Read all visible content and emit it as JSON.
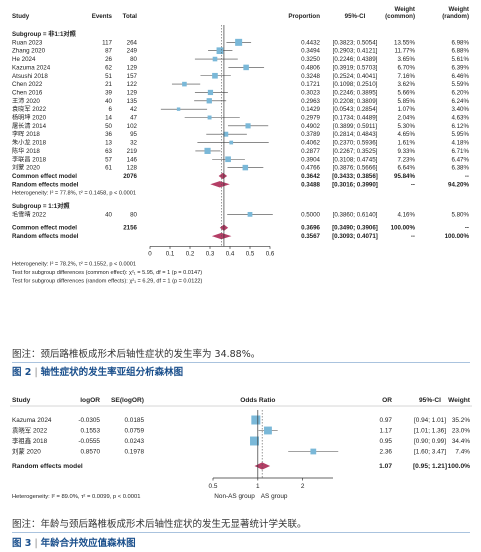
{
  "fig2": {
    "caption": "图注：颈后路椎板成形术后轴性症状的发生率为 34.88%。",
    "fig_label": "图 2",
    "fig_title": "轴性症状的发生率亚组分析森林图"
  },
  "fig3": {
    "caption": "图注：年龄与颈后路椎板成形术后轴性症状的发生无显著统计学关联。",
    "fig_label": "图 3",
    "fig_title": "年龄合并效应值森林图"
  },
  "chart_data": [
    {
      "type": "forest",
      "header": {
        "study": "Study",
        "events": "Events",
        "total": "Total",
        "proportion": "Proportion",
        "ci": "95%-CI",
        "wc_line1": "Weight",
        "wc_line2": "(common)",
        "wr_line1": "Weight",
        "wr_line2": "(random)"
      },
      "subgroups": [
        {
          "label": "Subgroup = 非1:1对照",
          "studies": [
            {
              "study": "Ruan 2023",
              "events": "117",
              "total": "264",
              "proportion": 0.4432,
              "ci": "[0.3823; 0.5054]",
              "lo": 0.3823,
              "hi": 0.5054,
              "wc": "13.55%",
              "wr": "6.98%"
            },
            {
              "study": "Zhang 2020",
              "events": "87",
              "total": "249",
              "proportion": 0.3494,
              "ci": "[0.2903; 0.4121]",
              "lo": 0.2903,
              "hi": 0.4121,
              "wc": "11.77%",
              "wr": "6.88%"
            },
            {
              "study": "He 2024",
              "events": "26",
              "total": "80",
              "proportion": 0.325,
              "ci": "[0.2246; 0.4389]",
              "lo": 0.2246,
              "hi": 0.4389,
              "wc": "3.65%",
              "wr": "5.61%"
            },
            {
              "study": "Kazuma 2024",
              "events": "62",
              "total": "129",
              "proportion": 0.4806,
              "ci": "[0.3919; 0.5703]",
              "lo": 0.3919,
              "hi": 0.5703,
              "wc": "6.70%",
              "wr": "6.39%"
            },
            {
              "study": "Atsushi 2018",
              "events": "51",
              "total": "157",
              "proportion": 0.3248,
              "ci": "[0.2524; 0.4041]",
              "lo": 0.2524,
              "hi": 0.4041,
              "wc": "7.16%",
              "wr": "6.46%"
            },
            {
              "study": "Chen 2022",
              "events": "21",
              "total": "122",
              "proportion": 0.1721,
              "ci": "[0.1098; 0.2510]",
              "lo": 0.1098,
              "hi": 0.251,
              "wc": "3.62%",
              "wr": "5.59%"
            },
            {
              "study": "Chen 2016",
              "events": "39",
              "total": "129",
              "proportion": 0.3023,
              "ci": "[0.2246; 0.3895]",
              "lo": 0.2246,
              "hi": 0.3895,
              "wc": "5.66%",
              "wr": "6.20%"
            },
            {
              "study": "王沛 2020",
              "events": "40",
              "total": "135",
              "proportion": 0.2963,
              "ci": "[0.2208; 0.3809]",
              "lo": 0.2208,
              "hi": 0.3809,
              "wc": "5.85%",
              "wr": "6.24%"
            },
            {
              "study": "袁晓军 2022",
              "events": "6",
              "total": "42",
              "proportion": 0.1429,
              "ci": "[0.0543; 0.2854]",
              "lo": 0.0543,
              "hi": 0.2854,
              "wc": "1.07%",
              "wr": "3.40%"
            },
            {
              "study": "杨明坤 2020",
              "events": "14",
              "total": "47",
              "proportion": 0.2979,
              "ci": "[0.1734; 0.4489]",
              "lo": 0.1734,
              "hi": 0.4489,
              "wc": "2.04%",
              "wr": "4.63%"
            },
            {
              "study": "屠长清 2014",
              "events": "50",
              "total": "102",
              "proportion": 0.4902,
              "ci": "[0.3899; 0.5911]",
              "lo": 0.3899,
              "hi": 0.5911,
              "wc": "5.30%",
              "wr": "6.12%"
            },
            {
              "study": "李晖 2018",
              "events": "36",
              "total": "95",
              "proportion": 0.3789,
              "ci": "[0.2814; 0.4843]",
              "lo": 0.2814,
              "hi": 0.4843,
              "wc": "4.65%",
              "wr": "5.95%"
            },
            {
              "study": "朱小龙 2018",
              "events": "13",
              "total": "32",
              "proportion": 0.4062,
              "ci": "[0.2370; 0.5936]",
              "lo": 0.237,
              "hi": 0.5936,
              "wc": "1.61%",
              "wr": "4.18%"
            },
            {
              "study": "陈华 2018",
              "events": "63",
              "total": "219",
              "proportion": 0.2877,
              "ci": "[0.2267; 0.3525]",
              "lo": 0.2267,
              "hi": 0.3525,
              "wc": "9.33%",
              "wr": "6.71%"
            },
            {
              "study": "李联昌 2018",
              "events": "57",
              "total": "146",
              "proportion": 0.3904,
              "ci": "[0.3108; 0.4745]",
              "lo": 0.3108,
              "hi": 0.4745,
              "wc": "7.23%",
              "wr": "6.47%"
            },
            {
              "study": "刘蒙 2020",
              "events": "61",
              "total": "128",
              "proportion": 0.4766,
              "ci": "[0.3876; 0.5666]",
              "lo": 0.3876,
              "hi": 0.5666,
              "wc": "6.64%",
              "wr": "6.38%"
            }
          ],
          "common": {
            "label": "Common effect model",
            "total": "2076",
            "est": 0.3642,
            "ci": "[0.3433; 0.3856]",
            "lo": 0.3433,
            "hi": 0.3856,
            "wc": "95.84%",
            "wr": "--"
          },
          "random": {
            "label": "Random effects model",
            "est": 0.3488,
            "ci": "[0.3016; 0.3990]",
            "lo": 0.3016,
            "hi": 0.399,
            "wc": "--",
            "wr": "94.20%"
          },
          "heterogeneity": "Heterogeneity: I² = 77.8%, τ² = 0.1458, p < 0.0001"
        },
        {
          "label": "Subgroup = 1:1对照",
          "studies": [
            {
              "study": "毛雪晴 2022",
              "events": "40",
              "total": "80",
              "proportion": 0.5,
              "ci": "[0.3860; 0.6140]",
              "lo": 0.386,
              "hi": 0.614,
              "wc": "4.16%",
              "wr": "5.80%"
            }
          ]
        }
      ],
      "overall_common": {
        "label": "Common effect model",
        "total": "2156",
        "est": 0.3696,
        "ci": "[0.3490; 0.3906]",
        "lo": 0.349,
        "hi": 0.3906,
        "wc": "100.00%",
        "wr": "--"
      },
      "overall_random": {
        "label": "Random effects model",
        "est": 0.3567,
        "ci": "[0.3093; 0.4071]",
        "lo": 0.3093,
        "hi": 0.4071,
        "wc": "--",
        "wr": "100.00%"
      },
      "footer": [
        "Heterogeneity: I² = 78.2%, τ² = 0.1552, p < 0.0001",
        "Test for subgroup differences (common effect): χ²₁ = 5.95, df = 1 (p = 0.0147)",
        "Test for subgroup differences (random effects): χ²₁ = 6.29, df = 1 (p = 0.0122)"
      ],
      "x_ticks": [
        "0",
        "0.1",
        "0.2",
        "0.3",
        "0.4",
        "0.5",
        "0.6"
      ],
      "xlim": [
        0,
        0.6
      ],
      "colors": {
        "square": "#7ab8d8",
        "diamond": "#b43e66"
      }
    },
    {
      "type": "forest",
      "header": {
        "study": "Study",
        "logor": "logOR",
        "se": "SE(logOR)",
        "odds_ratio": "Odds Ratio",
        "or": "OR",
        "ci": "95%-CI",
        "weight": "Weight"
      },
      "studies": [
        {
          "study": "Kazuma 2024",
          "logor": "-0.0305",
          "se": "0.0185",
          "or_text": "0.97",
          "or": 0.97,
          "ci": "[0.94; 1.01]",
          "lo": 0.94,
          "hi": 1.01,
          "weight": "35.2%"
        },
        {
          "study": "袁晓军 2022",
          "logor": "0.1553",
          "se": "0.0759",
          "or_text": "1.17",
          "or": 1.17,
          "ci": "[1.01; 1.36]",
          "lo": 1.01,
          "hi": 1.36,
          "weight": "23.0%"
        },
        {
          "study": "李祖鑫 2018",
          "logor": "-0.0555",
          "se": "0.0243",
          "or_text": "0.95",
          "or": 0.95,
          "ci": "[0.90; 0.99]",
          "lo": 0.9,
          "hi": 0.99,
          "weight": "34.4%"
        },
        {
          "study": "刘蒙 2020",
          "logor": "0.8570",
          "se": "0.1978",
          "or_text": "2.36",
          "or": 2.36,
          "ci": "[1.60; 3.47]",
          "lo": 1.6,
          "hi": 3.47,
          "weight": "7.4%"
        }
      ],
      "random": {
        "label": "Random effects model",
        "or_text": "1.07",
        "est": 1.07,
        "ci": "[0.95; 1.21]",
        "lo": 0.95,
        "hi": 1.21,
        "weight": "100.0%"
      },
      "heterogeneity": "Heterogeneity: I² = 89.0%, τ² = 0.0099, p < 0.0001",
      "x_ticks": [
        "0.5",
        "1",
        "2"
      ],
      "x_scale": "log",
      "axis_labels": {
        "left": "Non-AS group",
        "right": "AS group"
      },
      "colors": {
        "square": "#7ab8d8",
        "diamond": "#b43e66"
      }
    }
  ]
}
